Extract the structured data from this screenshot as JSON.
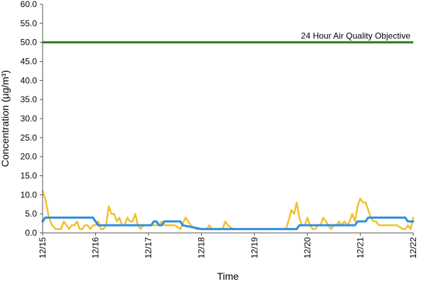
{
  "chart_data": {
    "type": "line",
    "title": "",
    "xlabel": "Time",
    "ylabel": "Concentration (µg/m³)",
    "ylim": [
      0,
      60
    ],
    "yticks": [
      "0.0",
      "5.0",
      "10.0",
      "15.0",
      "20.0",
      "25.0",
      "30.0",
      "35.0",
      "40.0",
      "45.0",
      "50.0",
      "55.0",
      "60.0"
    ],
    "xlim": [
      "12/15",
      "12/22"
    ],
    "xticks": [
      "12/15",
      "12/16",
      "12/17",
      "12/18",
      "12/19",
      "12/20",
      "12/21",
      "12/22"
    ],
    "grid": false,
    "legend": "none",
    "objective": {
      "label": "24 Hour Air Quality Objective",
      "value": 50,
      "color": "#2e7d1f"
    },
    "series": [
      {
        "color": "#f2c12e",
        "x_days": [
          0.0,
          0.05,
          0.12,
          0.18,
          0.25,
          0.3,
          0.35,
          0.4,
          0.45,
          0.5,
          0.55,
          0.6,
          0.65,
          0.7,
          0.75,
          0.8,
          0.85,
          0.9,
          0.95,
          1.0,
          1.05,
          1.1,
          1.15,
          1.2,
          1.25,
          1.3,
          1.35,
          1.4,
          1.45,
          1.5,
          1.55,
          1.6,
          1.65,
          1.7,
          1.75,
          1.8,
          1.85,
          1.9,
          1.95,
          2.0,
          2.05,
          2.1,
          2.15,
          2.2,
          2.25,
          2.3,
          2.35,
          2.4,
          2.5,
          2.6,
          2.7,
          2.8,
          2.9,
          3.0,
          3.05,
          3.1,
          3.15,
          3.2,
          3.3,
          3.4,
          3.45,
          3.5,
          3.6,
          3.7,
          3.8,
          3.9,
          4.0,
          4.1,
          4.2,
          4.3,
          4.4,
          4.5,
          4.6,
          4.7,
          4.75,
          4.8,
          4.85,
          4.9,
          4.95,
          5.0,
          5.05,
          5.1,
          5.15,
          5.2,
          5.25,
          5.3,
          5.35,
          5.4,
          5.45,
          5.5,
          5.55,
          5.6,
          5.65,
          5.7,
          5.75,
          5.8,
          5.85,
          5.9,
          5.95,
          6.0,
          6.05,
          6.1,
          6.15,
          6.2,
          6.25,
          6.3,
          6.35,
          6.4,
          6.5,
          6.6,
          6.7,
          6.8,
          6.85,
          6.9,
          6.95,
          7.0
        ],
        "values": [
          11,
          9,
          4,
          2,
          1,
          1,
          1,
          3,
          2,
          1,
          2,
          2,
          3,
          1,
          1,
          2,
          2,
          1,
          2,
          2,
          3,
          1,
          1,
          2,
          7,
          5,
          5,
          3,
          4,
          2,
          2,
          4,
          3,
          3,
          5,
          2,
          1,
          2,
          2,
          2,
          2,
          2,
          2,
          2,
          3,
          2,
          2,
          2,
          2,
          1,
          4,
          2,
          1,
          1,
          1,
          1,
          2,
          1,
          1,
          1,
          3,
          2,
          1,
          1,
          1,
          1,
          1,
          1,
          1,
          1,
          1,
          1,
          1,
          6,
          5,
          8,
          4,
          2,
          2,
          4,
          2,
          1,
          1,
          2,
          2,
          4,
          3,
          2,
          1,
          2,
          2,
          3,
          2,
          3,
          2,
          3,
          5,
          3,
          7,
          9,
          8,
          8,
          6,
          4,
          3,
          3,
          2,
          2,
          2,
          2,
          2,
          1,
          1,
          2,
          1,
          4
        ],
        "x_days_tail": []
      },
      {
        "color": "#2f8fe0",
        "x_days": [
          0.0,
          0.05,
          0.9,
          0.95,
          1.0,
          1.05,
          2.0,
          2.05,
          2.1,
          2.15,
          2.2,
          2.25,
          2.3,
          2.35,
          2.4,
          2.45,
          2.6,
          2.65,
          3.0,
          4.0,
          4.8,
          4.85,
          5.0,
          5.9,
          5.95,
          6.05,
          6.1,
          6.15,
          6.2,
          6.85,
          6.9,
          7.0
        ],
        "values": [
          3,
          4,
          4,
          4,
          3,
          2,
          2,
          2,
          3,
          3,
          2,
          2,
          3,
          3,
          3,
          3,
          3,
          2,
          1,
          1,
          1,
          2,
          2,
          2,
          3,
          3,
          3,
          4,
          4,
          4,
          3,
          3
        ]
      }
    ]
  }
}
